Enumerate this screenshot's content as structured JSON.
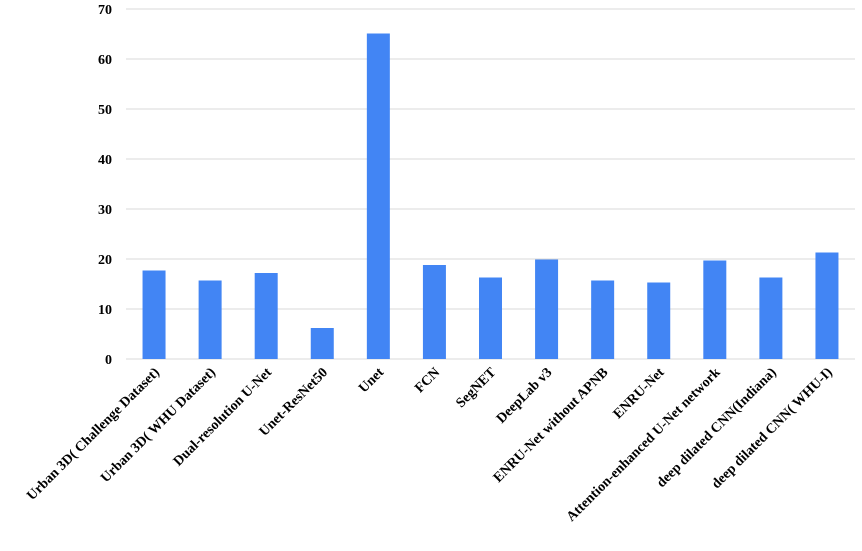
{
  "chart_data": {
    "type": "bar",
    "title": "",
    "xlabel": "",
    "ylabel": "",
    "ylim": [
      0,
      70
    ],
    "yticks": [
      0,
      10,
      20,
      30,
      40,
      50,
      60,
      70
    ],
    "grid": true,
    "legend": "none",
    "bar_color": "#4285f4",
    "categories": [
      "Urban 3D( Challenge Dataset)",
      "Urban 3D( WHU Dataset)",
      "Dual-resolution U-Net",
      "Unet-ResNet50",
      "Unet",
      "FCN",
      "SegNET",
      "DeepLab v3",
      "ENRU-Net without APNB",
      "ENRU-Net",
      "Attention-enhanced U-Net network",
      "deep dilated CNN(Indiana)",
      "deep dilated CNN( WHU-I)"
    ],
    "values": [
      17.7,
      15.7,
      17.2,
      6.2,
      65.1,
      18.8,
      16.3,
      19.9,
      15.7,
      15.3,
      19.7,
      16.3,
      21.3
    ]
  }
}
